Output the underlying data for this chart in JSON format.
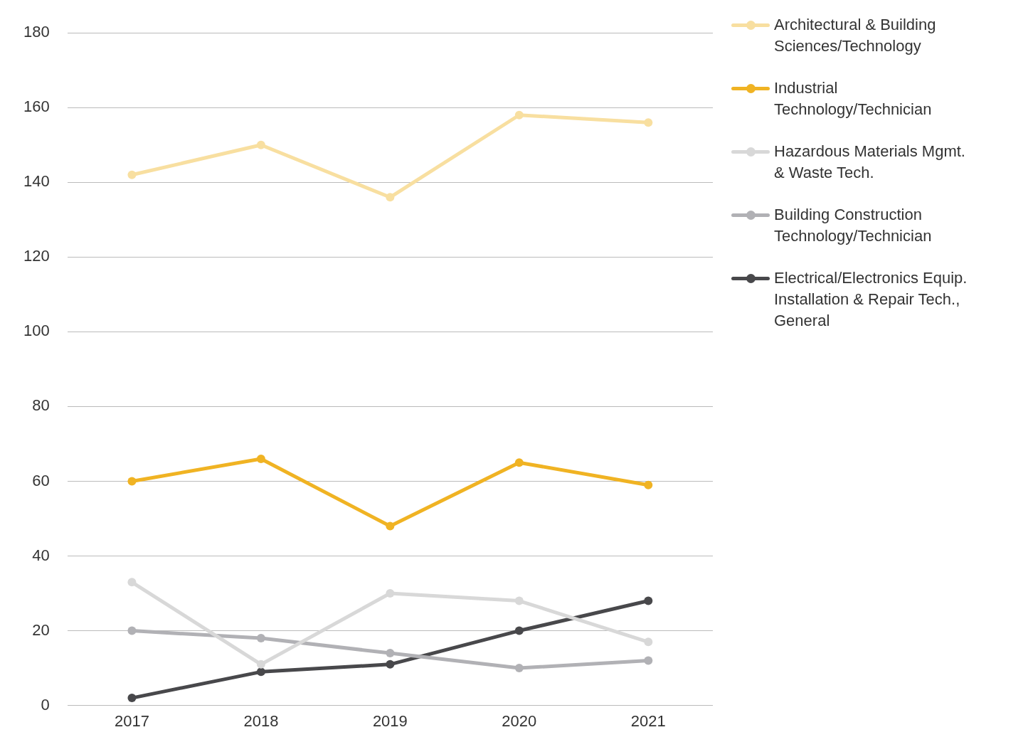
{
  "chart_data": {
    "type": "line",
    "categories": [
      "2017",
      "2018",
      "2019",
      "2020",
      "2021"
    ],
    "series": [
      {
        "name": "Architectural & Building Sciences/Technology",
        "color": "#f8dfa0",
        "values": [
          142,
          150,
          136,
          158,
          156
        ]
      },
      {
        "name": "Industrial Technology/Technician",
        "color": "#f0b323",
        "values": [
          60,
          66,
          48,
          65,
          59
        ]
      },
      {
        "name": "Hazardous Materials Mgmt. & Waste Tech.",
        "color": "#d8d8d8",
        "values": [
          33,
          11,
          30,
          28,
          17
        ]
      },
      {
        "name": "Building Construction Technology/Technician",
        "color": "#b1b1b5",
        "values": [
          20,
          18,
          14,
          10,
          12
        ]
      },
      {
        "name": "Electrical/Electronics Equip. Installation & Repair Tech., General",
        "color": "#48484b",
        "values": [
          2,
          9,
          11,
          20,
          28
        ]
      }
    ],
    "ylim": [
      0,
      180
    ],
    "yticks": [
      0,
      20,
      40,
      60,
      80,
      100,
      120,
      140,
      160,
      180
    ],
    "grid": "y",
    "legend": "right",
    "marker": "circle",
    "line_style": "solid"
  }
}
